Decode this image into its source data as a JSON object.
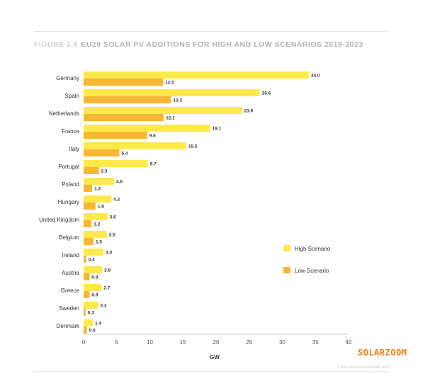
{
  "title": {
    "figure_label": "FIGURE 1.8",
    "text": "EU28 SOLAR PV ADDITIONS FOR HIGH AND LOW SCENARIOS 2019-2023"
  },
  "chart_data": {
    "type": "bar",
    "orientation": "horizontal",
    "title": "EU28 SOLAR PV ADDITIONS FOR HIGH AND LOW SCENARIOS 2019-2023",
    "xlabel": "GW",
    "ylabel": "",
    "xlim": [
      0,
      40
    ],
    "xticks": [
      0,
      5,
      10,
      15,
      20,
      25,
      30,
      35,
      40
    ],
    "categories": [
      "Germany",
      "Spain",
      "Netherlands",
      "France",
      "Italy",
      "Portugal",
      "Poland",
      "Hungary",
      "United Kingdom",
      "Belgium",
      "Ireland",
      "Austria",
      "Greece",
      "Sweden",
      "Denmark"
    ],
    "series": [
      {
        "name": "High Scenario",
        "color": "#fde94a",
        "values": [
          34.0,
          26.6,
          23.9,
          19.1,
          15.5,
          9.7,
          4.6,
          4.2,
          3.6,
          3.5,
          3.0,
          2.8,
          2.7,
          2.2,
          1.4
        ]
      },
      {
        "name": "Low Scenario",
        "color": "#f8b634",
        "values": [
          12.0,
          13.2,
          12.1,
          9.6,
          5.4,
          2.3,
          1.3,
          1.8,
          1.2,
          1.5,
          0.4,
          0.9,
          0.9,
          0.3,
          0.5
        ]
      }
    ],
    "legend_position": "right",
    "grid": false
  },
  "brand": "SOLARZOOM",
  "copyright": "© SOLARPOWER EUROPE 2019"
}
